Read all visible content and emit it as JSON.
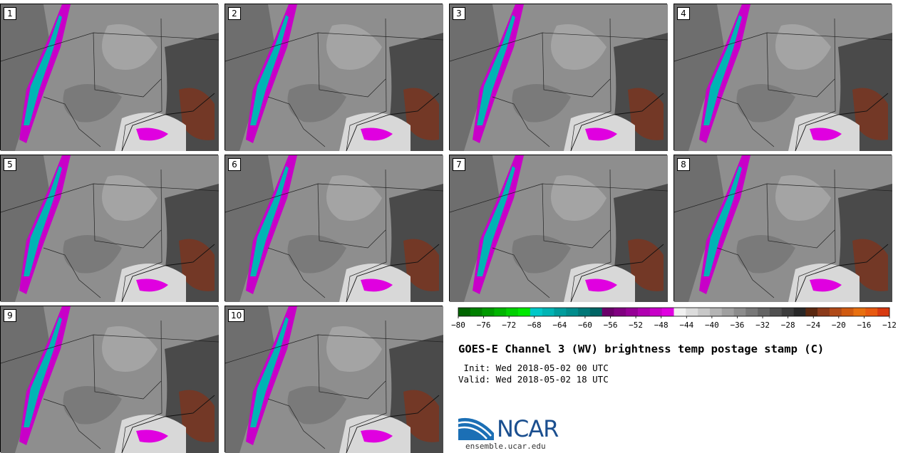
{
  "panels": [
    {
      "label": "1"
    },
    {
      "label": "2"
    },
    {
      "label": "3"
    },
    {
      "label": "4"
    },
    {
      "label": "5"
    },
    {
      "label": "6"
    },
    {
      "label": "7"
    },
    {
      "label": "8"
    },
    {
      "label": "9"
    },
    {
      "label": "10"
    }
  ],
  "colorbar": {
    "ticks": [
      "−80",
      "−76",
      "−72",
      "−68",
      "−64",
      "−60",
      "−56",
      "−52",
      "−48",
      "−44",
      "−40",
      "−36",
      "−32",
      "−28",
      "−24",
      "−20",
      "−16",
      "−12"
    ],
    "colors": [
      "#006400",
      "#008000",
      "#009a00",
      "#00b400",
      "#00d000",
      "#00e800",
      "#00c8c8",
      "#00b4b4",
      "#009c9c",
      "#008c8c",
      "#007878",
      "#006464",
      "#6a006a",
      "#800080",
      "#960096",
      "#b000b0",
      "#c800c8",
      "#e000e0",
      "#f0f0f0",
      "#dcdcdc",
      "#c8c8c8",
      "#b4b4b4",
      "#a0a0a0",
      "#8c8c8c",
      "#787878",
      "#646464",
      "#505050",
      "#3c3c3c",
      "#282828",
      "#5a2810",
      "#8b3a1a",
      "#b04a18",
      "#d05a10",
      "#e87010",
      "#e85a10",
      "#d83a10"
    ]
  },
  "title": "GOES-E Channel 3 (WV) brightness temp postage stamp (C)",
  "init_line": " Init: Wed 2018-05-02 00 UTC",
  "valid_line": "Valid: Wed 2018-05-02 18 UTC",
  "logo": {
    "text": "NCAR",
    "url": "ensemble.ucar.edu"
  }
}
